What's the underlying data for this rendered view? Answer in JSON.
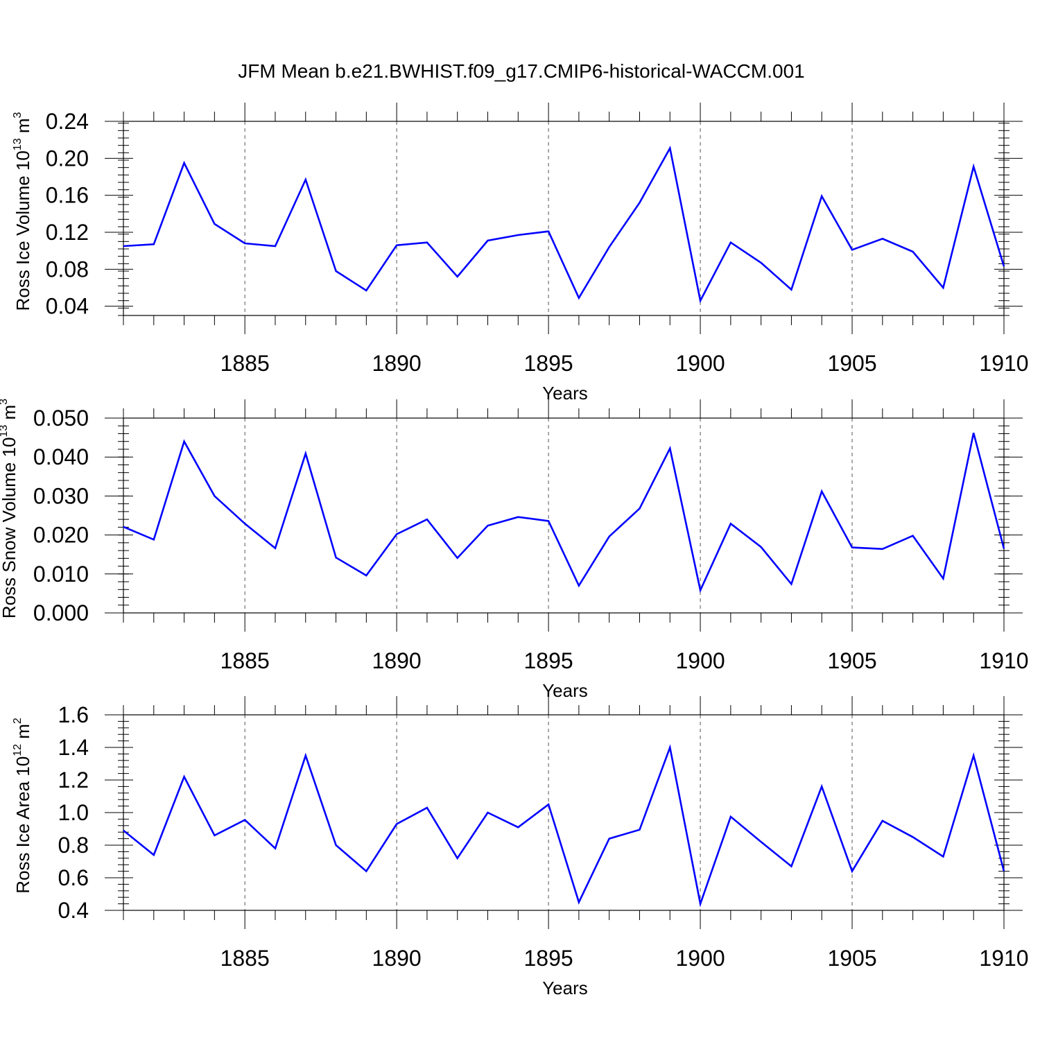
{
  "title": "JFM Mean b.e21.BWHIST.f09_g17.CMIP6-historical-WACCM.001",
  "line_color": "#0000ff",
  "chart_data": [
    {
      "type": "line",
      "ylabel": {
        "main": "Ross Ice Volume 10",
        "sup": "13",
        "mid": " m",
        "sup2": "3"
      },
      "xlabel": "Years",
      "xlim": [
        1881,
        1910
      ],
      "ylim": [
        0.03,
        0.24
      ],
      "xticks": [
        1885,
        1890,
        1895,
        1900,
        1905,
        1910
      ],
      "yticks": [
        0.04,
        0.08,
        0.12,
        0.16,
        0.2,
        0.24
      ],
      "ytick_labels": [
        "0.04",
        "0.08",
        "0.12",
        "0.16",
        "0.20",
        "0.24"
      ],
      "x": [
        1881,
        1882,
        1883,
        1884,
        1885,
        1886,
        1887,
        1888,
        1889,
        1890,
        1891,
        1892,
        1893,
        1894,
        1895,
        1896,
        1897,
        1898,
        1899,
        1900,
        1901,
        1902,
        1903,
        1904,
        1905,
        1906,
        1907,
        1908,
        1909,
        1910
      ],
      "series": [
        {
          "values": [
            0.105,
            0.107,
            0.195,
            0.129,
            0.108,
            0.105,
            0.177,
            0.078,
            0.057,
            0.106,
            0.109,
            0.072,
            0.111,
            0.117,
            0.121,
            0.049,
            0.104,
            0.152,
            0.211,
            0.046,
            0.109,
            0.087,
            0.058,
            0.159,
            0.101,
            0.113,
            0.099,
            0.06,
            0.191,
            0.083
          ]
        }
      ],
      "grid": "vertical dashed"
    },
    {
      "type": "line",
      "ylabel": {
        "main": "Ross Snow Volume 10",
        "sup": "13",
        "mid": " m",
        "sup2": "3"
      },
      "xlabel": "Years",
      "xlim": [
        1881,
        1910
      ],
      "ylim": [
        0.0,
        0.05
      ],
      "xticks": [
        1885,
        1890,
        1895,
        1900,
        1905,
        1910
      ],
      "yticks": [
        0.0,
        0.01,
        0.02,
        0.03,
        0.04,
        0.05
      ],
      "ytick_labels": [
        "0.000",
        "0.010",
        "0.020",
        "0.030",
        "0.040",
        "0.050"
      ],
      "x": [
        1881,
        1882,
        1883,
        1884,
        1885,
        1886,
        1887,
        1888,
        1889,
        1890,
        1891,
        1892,
        1893,
        1894,
        1895,
        1896,
        1897,
        1898,
        1899,
        1900,
        1901,
        1902,
        1903,
        1904,
        1905,
        1906,
        1907,
        1908,
        1909,
        1910
      ],
      "series": [
        {
          "values": [
            0.0221,
            0.0188,
            0.044,
            0.03,
            0.0229,
            0.0166,
            0.0409,
            0.0142,
            0.0096,
            0.0202,
            0.024,
            0.0141,
            0.0224,
            0.0246,
            0.0236,
            0.007,
            0.0196,
            0.0268,
            0.0422,
            0.0058,
            0.0229,
            0.0169,
            0.0074,
            0.0312,
            0.0168,
            0.0164,
            0.0198,
            0.0088,
            0.0462,
            0.0165
          ]
        }
      ],
      "grid": "vertical dashed"
    },
    {
      "type": "line",
      "ylabel": {
        "main": "Ross Ice Area 10",
        "sup": "12",
        "mid": " m",
        "sup2": "2"
      },
      "xlabel": "Years",
      "xlim": [
        1881,
        1910
      ],
      "ylim": [
        0.4,
        1.6
      ],
      "xticks": [
        1885,
        1890,
        1895,
        1900,
        1905,
        1910
      ],
      "yticks": [
        0.4,
        0.6,
        0.8,
        1.0,
        1.2,
        1.4,
        1.6
      ],
      "ytick_labels": [
        "0.4",
        "0.6",
        "0.8",
        "1.0",
        "1.2",
        "1.4",
        "1.6"
      ],
      "x": [
        1881,
        1882,
        1883,
        1884,
        1885,
        1886,
        1887,
        1888,
        1889,
        1890,
        1891,
        1892,
        1893,
        1894,
        1895,
        1896,
        1897,
        1898,
        1899,
        1900,
        1901,
        1902,
        1903,
        1904,
        1905,
        1906,
        1907,
        1908,
        1909,
        1910
      ],
      "series": [
        {
          "values": [
            0.89,
            0.74,
            1.22,
            0.86,
            0.955,
            0.78,
            1.35,
            0.8,
            0.64,
            0.93,
            1.03,
            0.72,
            1.0,
            0.91,
            1.05,
            0.45,
            0.84,
            0.895,
            1.4,
            0.44,
            0.975,
            0.82,
            0.67,
            1.16,
            0.64,
            0.95,
            0.85,
            0.73,
            1.35,
            0.64
          ]
        }
      ],
      "grid": "vertical dashed"
    }
  ]
}
